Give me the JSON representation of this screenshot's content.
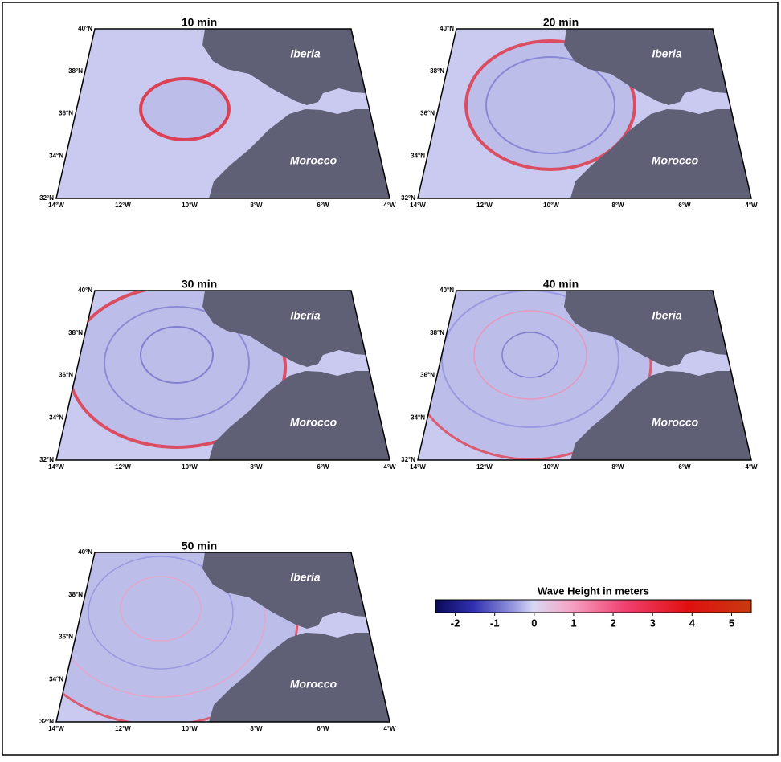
{
  "panels": [
    {
      "title": "10 min",
      "north": "Iberia",
      "south": "Morocco"
    },
    {
      "title": "20 min",
      "north": "Iberia",
      "south": "Morocco"
    },
    {
      "title": "30 min",
      "north": "Iberia",
      "south": "Morocco"
    },
    {
      "title": "40 min",
      "north": "Iberia",
      "south": "Morocco"
    },
    {
      "title": "50 min",
      "north": "Iberia",
      "south": "Morocco"
    }
  ],
  "lat_labels": [
    "40°N",
    "38°N",
    "36°N",
    "34°N",
    "32°N"
  ],
  "lon_labels": [
    "14°W",
    "12°W",
    "10°W",
    "8°W",
    "6°W",
    "4°W"
  ],
  "colorbar": {
    "title": "Wave Height in meters",
    "range": [
      -2.5,
      5.5
    ],
    "ticks": [
      -2,
      -1,
      0,
      1,
      2,
      3,
      4,
      5
    ]
  }
}
